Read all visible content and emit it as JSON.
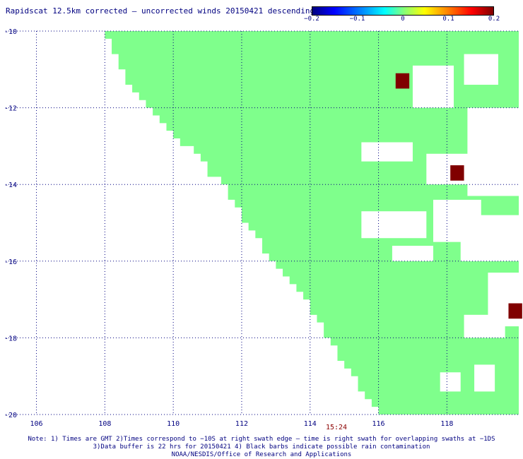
{
  "title": "Rapidscat 12.5km corrected — uncorrected winds 20150421 descending",
  "colorbar": {
    "ticks": [
      {
        "label": "−0.2",
        "value": -0.2
      },
      {
        "label": "−0.1",
        "value": -0.1
      },
      {
        "label": "0",
        "value": 0
      },
      {
        "label": "0.1",
        "value": 0.1
      },
      {
        "label": "0.2",
        "value": 0.2
      }
    ]
  },
  "time_label": "15:24",
  "notes": {
    "line1": "Note: 1) Times are GMT 2)Times correspond to −10S at right swath edge — time is right swath for overlapping swaths at −1DS",
    "line2": "3)Data buffer is 22 hrs for 20150421 4) Black barbs indicate possible rain contamination",
    "line3": "NOAA/NESDIS/Office of Research and Applications"
  },
  "chart_data": {
    "type": "heatmap",
    "x_ticks": [
      106,
      108,
      110,
      112,
      114,
      116,
      118
    ],
    "y_ticks": [
      -10,
      -12,
      -14,
      -16,
      -18,
      -20
    ],
    "x_tick_labels": [
      "106",
      "108",
      "110",
      "112",
      "114",
      "116",
      "118"
    ],
    "y_tick_labels": [
      "-10",
      "-12",
      "-14",
      "-16",
      "-18",
      "-20"
    ],
    "xlim": [
      105.1,
      120.1
    ],
    "ylim": [
      -20,
      -10
    ],
    "grid": true,
    "cell_size_deg": 0.4,
    "dominant_value": 0.0,
    "swath_left_edge": [
      {
        "lat": -10.0,
        "lon": 108.1
      },
      {
        "lat": -11.0,
        "lon": 108.5
      },
      {
        "lat": -12.0,
        "lon": 109.3
      },
      {
        "lat": -13.0,
        "lon": 110.5
      },
      {
        "lat": -14.0,
        "lon": 111.5
      },
      {
        "lat": -15.0,
        "lon": 112.2
      },
      {
        "lat": -16.0,
        "lon": 113.0
      },
      {
        "lat": -17.0,
        "lon": 113.9
      },
      {
        "lat": -18.0,
        "lon": 114.6
      },
      {
        "lat": -19.0,
        "lon": 115.3
      },
      {
        "lat": -20.0,
        "lon": 116.1
      }
    ],
    "data_gaps": [
      {
        "lon": [
          115.5,
          117.0
        ],
        "lat": [
          -13.4,
          -12.9
        ]
      },
      {
        "lon": [
          117.0,
          118.2
        ],
        "lat": [
          -12.0,
          -10.9
        ]
      },
      {
        "lon": [
          118.5,
          119.5
        ],
        "lat": [
          -11.4,
          -10.6
        ]
      },
      {
        "lon": [
          117.4,
          118.8
        ],
        "lat": [
          -14.0,
          -13.2
        ]
      },
      {
        "lon": [
          118.6,
          120.1
        ],
        "lat": [
          -14.3,
          -12.0
        ]
      },
      {
        "lon": [
          115.5,
          117.4
        ],
        "lat": [
          -15.4,
          -14.7
        ]
      },
      {
        "lon": [
          117.6,
          119.0
        ],
        "lat": [
          -15.5,
          -14.4
        ]
      },
      {
        "lon": [
          118.6,
          120.1
        ],
        "lat": [
          -16.0,
          -14.8
        ]
      },
      {
        "lon": [
          118.4,
          119.6
        ],
        "lat": [
          -16.0,
          -15.4
        ]
      },
      {
        "lon": [
          116.4,
          117.6
        ],
        "lat": [
          -16.0,
          -15.6
        ]
      },
      {
        "lon": [
          119.2,
          120.1
        ],
        "lat": [
          -17.7,
          -16.3
        ]
      },
      {
        "lon": [
          118.5,
          119.7
        ],
        "lat": [
          -18.0,
          -17.4
        ]
      },
      {
        "lon": [
          117.8,
          118.4
        ],
        "lat": [
          -19.4,
          -18.9
        ]
      },
      {
        "lon": [
          118.8,
          119.4
        ],
        "lat": [
          -19.4,
          -18.7
        ]
      }
    ],
    "high_value_cells": [
      {
        "lon": 116.7,
        "lat": -11.3,
        "value": 0.2
      },
      {
        "lon": 118.3,
        "lat": -13.7,
        "value": 0.2
      },
      {
        "lon": 120.0,
        "lat": -17.3,
        "value": 0.2
      }
    ]
  }
}
